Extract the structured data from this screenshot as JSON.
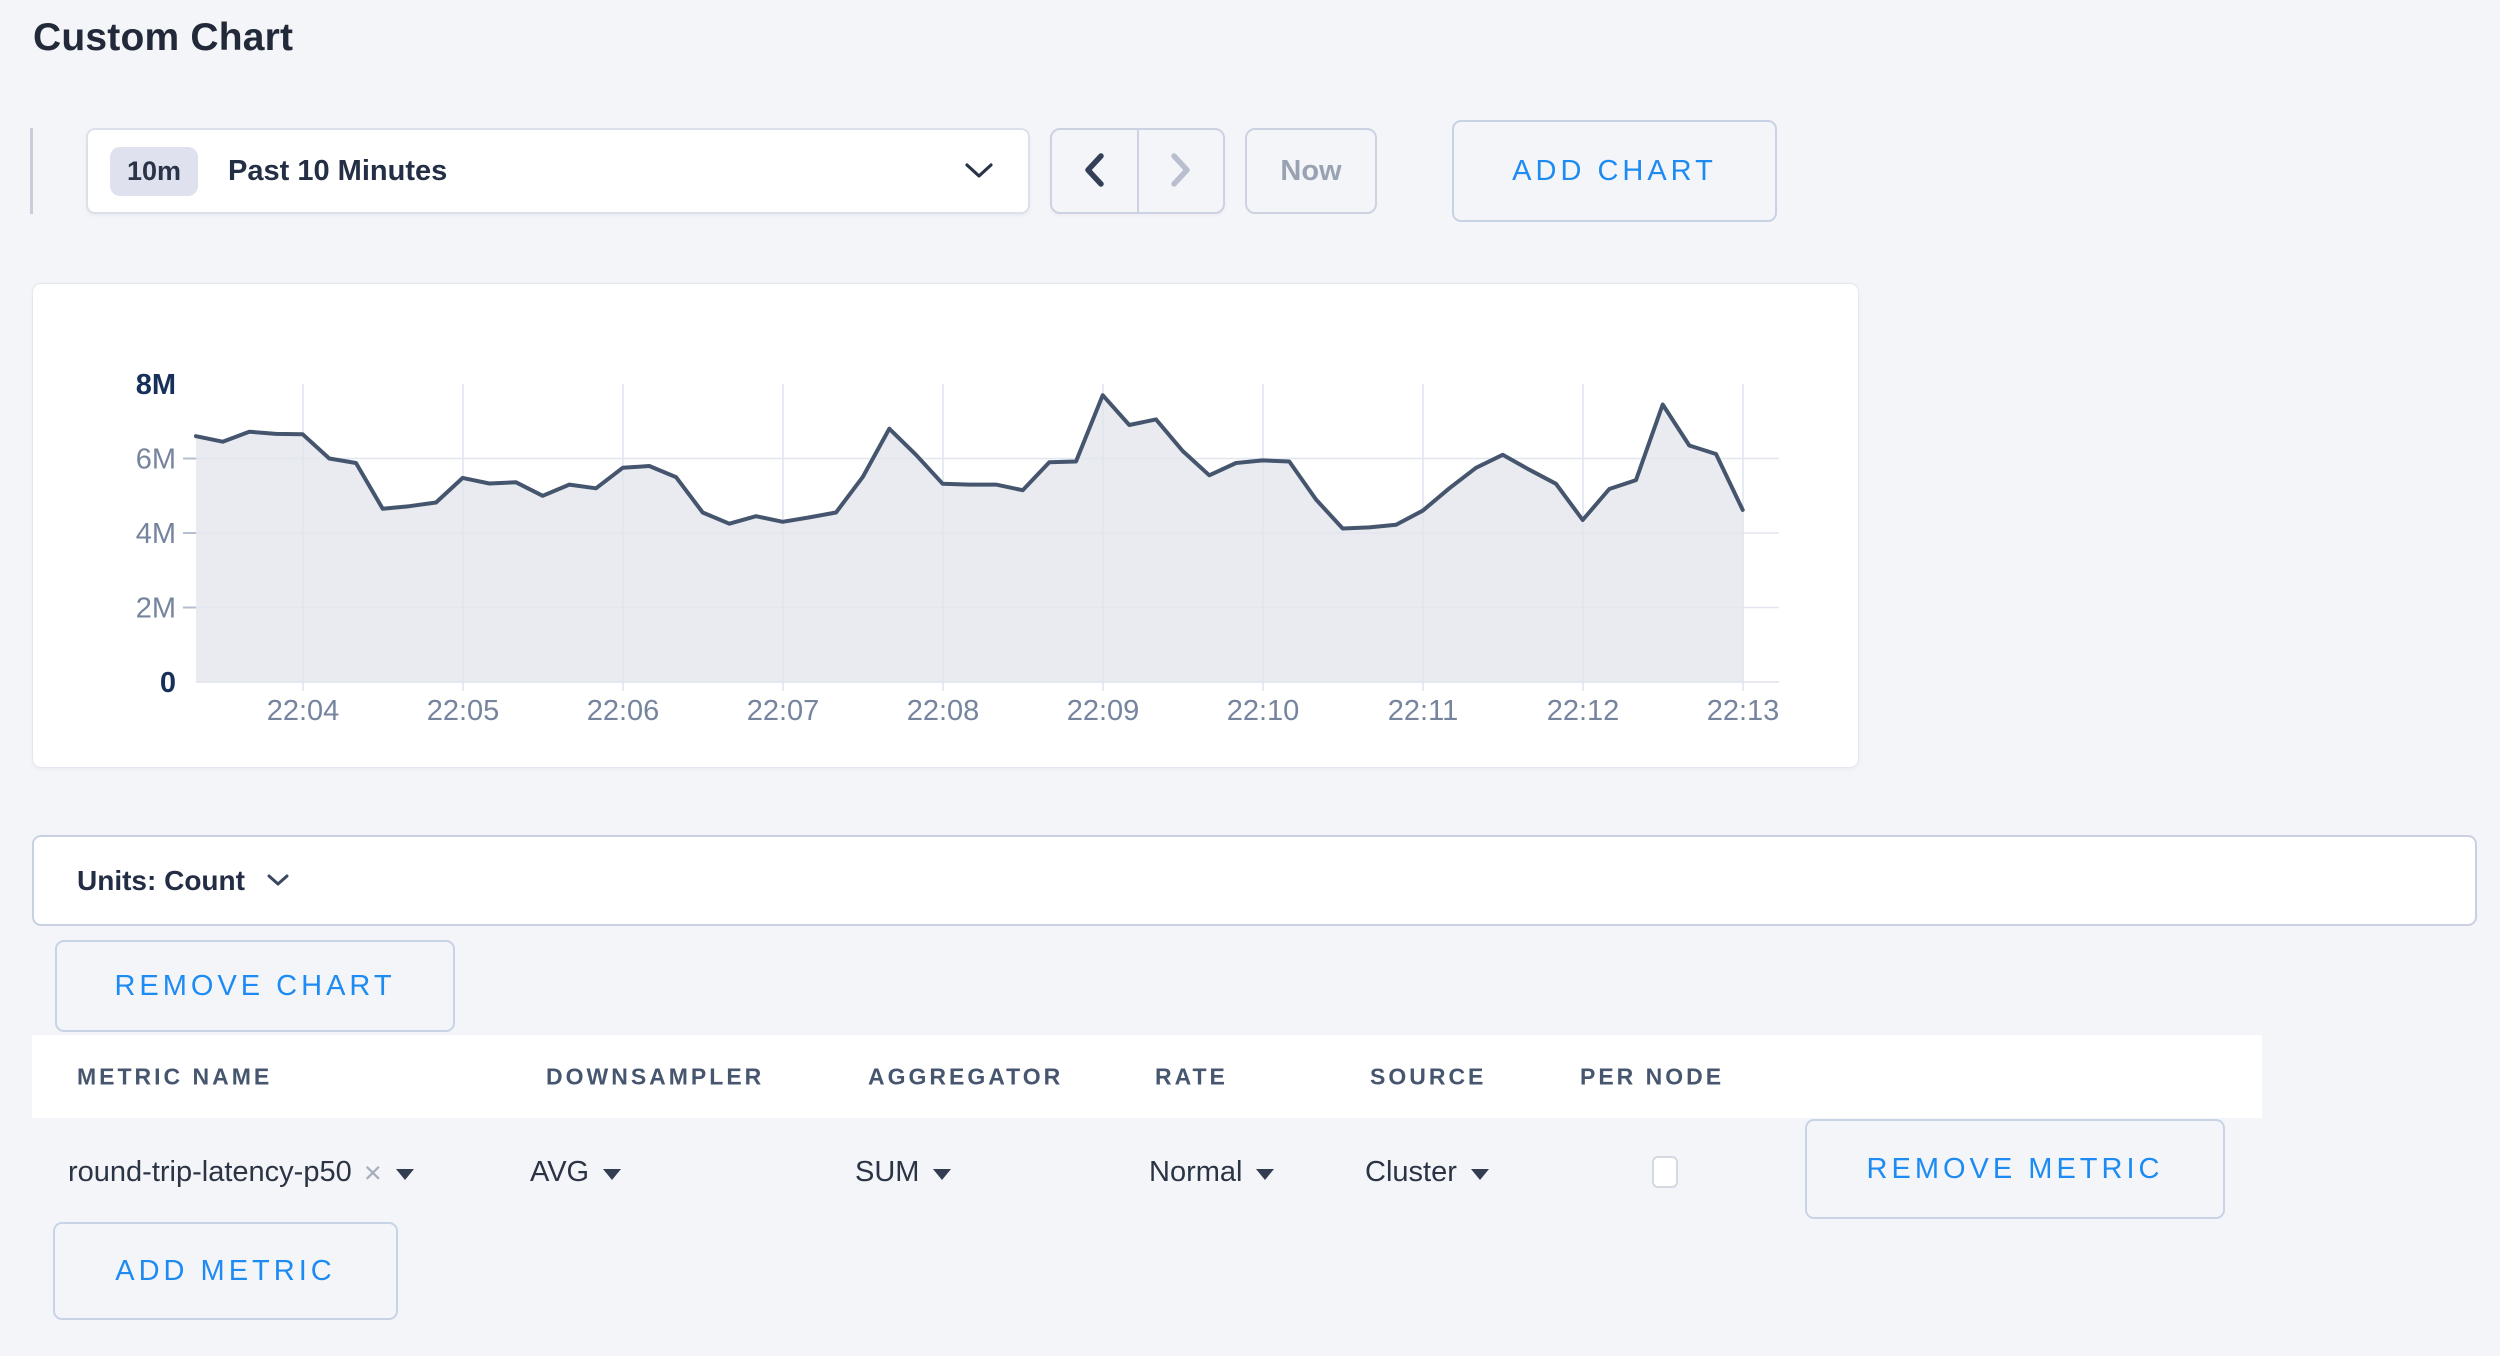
{
  "page": {
    "title": "Custom Chart",
    "background": "#f4f5f9",
    "accent_blue": "#1d8bf2"
  },
  "toolbar": {
    "time_window_badge": "10m",
    "time_window_label": "Past 10 Minutes",
    "now_label": "Now",
    "add_chart_label": "ADD CHART"
  },
  "icons": {
    "close": "×"
  },
  "chart_data": {
    "type": "area",
    "title": "",
    "unit": "Count",
    "x_start": "22:03:20",
    "x_interval_seconds": 10,
    "x_tick_labels": [
      "22:04",
      "22:05",
      "22:06",
      "22:07",
      "22:08",
      "22:09",
      "22:10",
      "22:11",
      "22:12",
      "22:13"
    ],
    "y_tick_labels": [
      "0",
      "2M",
      "4M",
      "6M",
      "8M"
    ],
    "ylim": [
      0,
      8000000
    ],
    "grid": true,
    "legend": "none",
    "line_color": "#46556e",
    "fill_color": "#e9ebf0",
    "values_millions": [
      6.6,
      6.45,
      6.72,
      6.66,
      6.65,
      6.0,
      5.88,
      4.65,
      4.72,
      4.82,
      5.48,
      5.33,
      5.36,
      5.0,
      5.3,
      5.2,
      5.75,
      5.8,
      5.5,
      4.55,
      4.25,
      4.45,
      4.3,
      4.42,
      4.55,
      5.5,
      6.8,
      6.1,
      5.32,
      5.3,
      5.3,
      5.15,
      5.9,
      5.92,
      7.7,
      6.9,
      7.05,
      6.2,
      5.55,
      5.88,
      5.95,
      5.92,
      4.9,
      4.12,
      4.15,
      4.22,
      4.6,
      5.2,
      5.75,
      6.1,
      5.7,
      5.32,
      4.35,
      5.18,
      5.42,
      7.45,
      6.35,
      6.12,
      4.62
    ]
  },
  "units_bar": {
    "label": "Units: Count"
  },
  "chart_actions": {
    "remove_chart_label": "REMOVE CHART"
  },
  "metrics_table": {
    "headers": [
      "METRIC NAME",
      "DOWNSAMPLER",
      "AGGREGATOR",
      "RATE",
      "SOURCE",
      "PER NODE"
    ],
    "row": {
      "metric_name": "round-trip-latency-p50",
      "downsampler": "AVG",
      "aggregator": "SUM",
      "rate": "Normal",
      "source": "Cluster",
      "per_node_checked": false,
      "remove_label": "REMOVE METRIC"
    },
    "add_metric_label": "ADD METRIC"
  }
}
